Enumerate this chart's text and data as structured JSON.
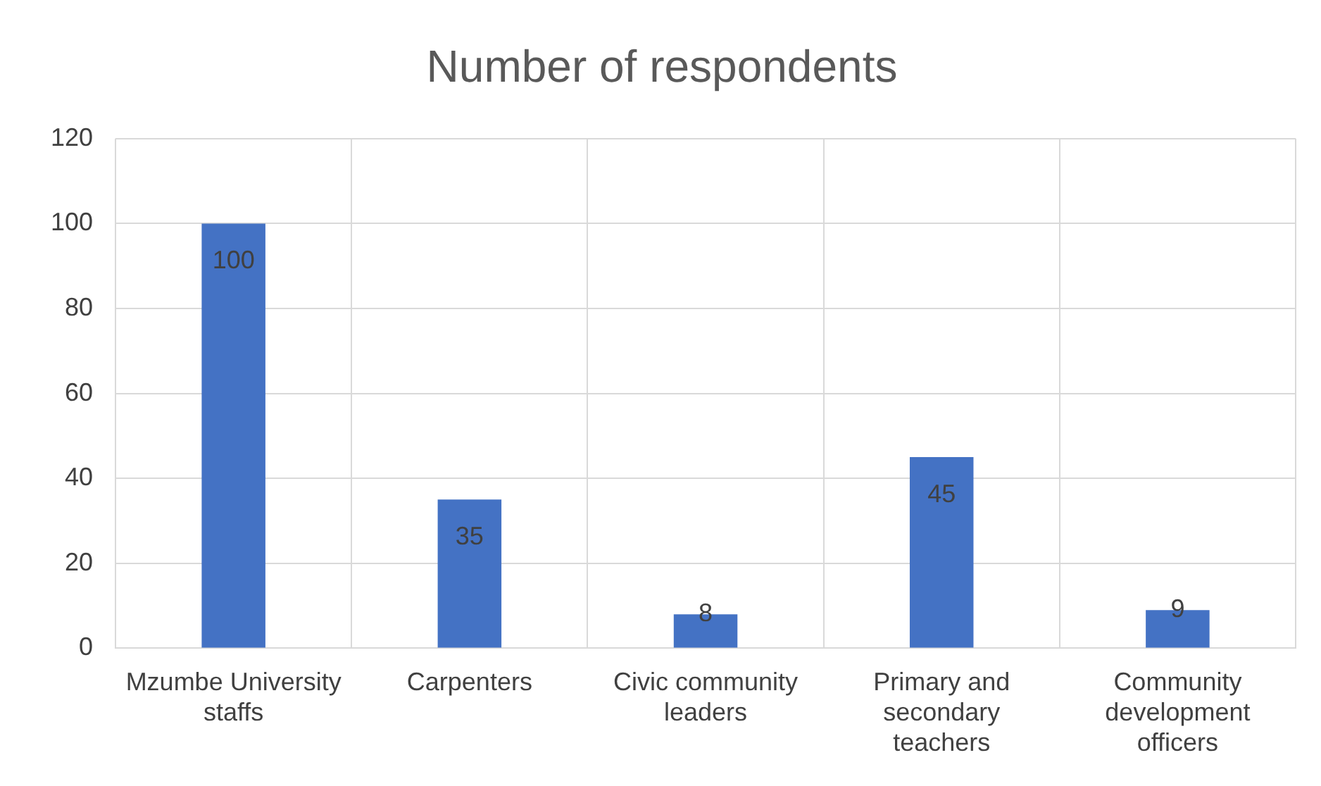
{
  "chart_data": {
    "type": "bar",
    "title": "Number of respondents",
    "categories": [
      "Mzumbe University staffs",
      "Carpenters",
      "Civic community leaders",
      "Primary and secondary teachers",
      "Community development officers"
    ],
    "values": [
      100,
      35,
      8,
      45,
      9
    ],
    "color": "#4472c4",
    "ylim": [
      0,
      120
    ],
    "yticks": [
      0,
      20,
      40,
      60,
      80,
      100,
      120
    ],
    "grid": true,
    "data_labels": true
  }
}
